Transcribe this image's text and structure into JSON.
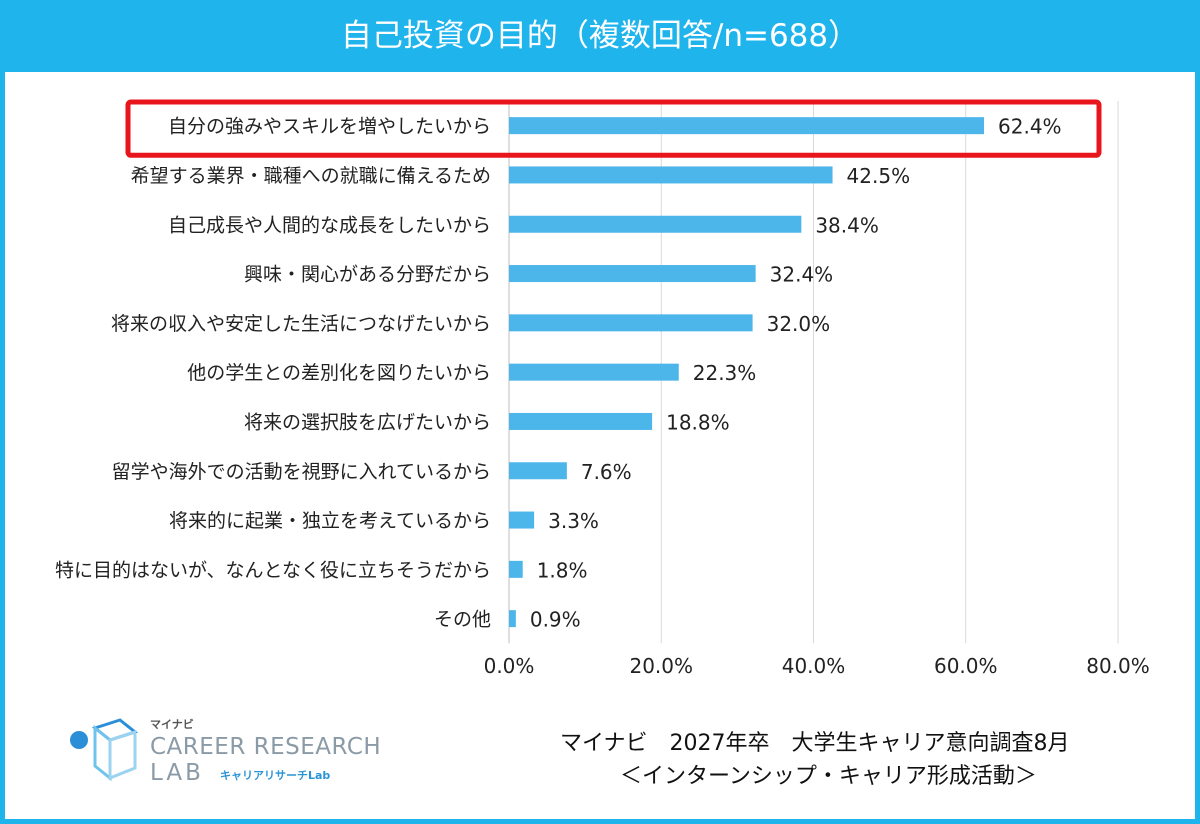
{
  "title": "自己投資の目的（複数回答/n=688）",
  "colors": {
    "header": "#1fb4ec",
    "bar": "#4cb5ea",
    "highlight": "#e8161c",
    "grid": "#d9d9d9"
  },
  "chart_data": {
    "type": "bar",
    "orientation": "horizontal",
    "categories": [
      "自分の強みやスキルを増やしたいから",
      "希望する業界・職種への就職に備えるため",
      "自己成長や人間的な成長をしたいから",
      "興味・関心がある分野だから",
      "将来の収入や安定した生活につなげたいから",
      "他の学生との差別化を図りたいから",
      "将来の選択肢を広げたいから",
      "留学や海外での活動を視野に入れているから",
      "将来的に起業・独立を考えているから",
      "特に目的はないが、なんとなく役に立ちそうだから",
      "その他"
    ],
    "values": [
      62.4,
      42.5,
      38.4,
      32.4,
      32.0,
      22.3,
      18.8,
      7.6,
      3.3,
      1.8,
      0.9
    ],
    "value_labels": [
      "62.4%",
      "42.5%",
      "38.4%",
      "32.4%",
      "32.0%",
      "22.3%",
      "18.8%",
      "7.6%",
      "3.3%",
      "1.8%",
      "0.9%"
    ],
    "xlim": [
      0,
      80
    ],
    "xticks": [
      0,
      20,
      40,
      60,
      80
    ],
    "xtick_labels": [
      "0.0%",
      "20.0%",
      "40.0%",
      "60.0%",
      "80.0%"
    ],
    "highlighted_index": 0,
    "grid": true
  },
  "logo": {
    "small": "マイナビ",
    "main": "CAREER RESEARCH",
    "lab": "LAB",
    "sub": "キャリアリサーチLab"
  },
  "source": {
    "line1": "マイナビ　2027年卒　大学生キャリア意向調査8月",
    "line2": "＜インターンシップ・キャリア形成活動＞"
  }
}
